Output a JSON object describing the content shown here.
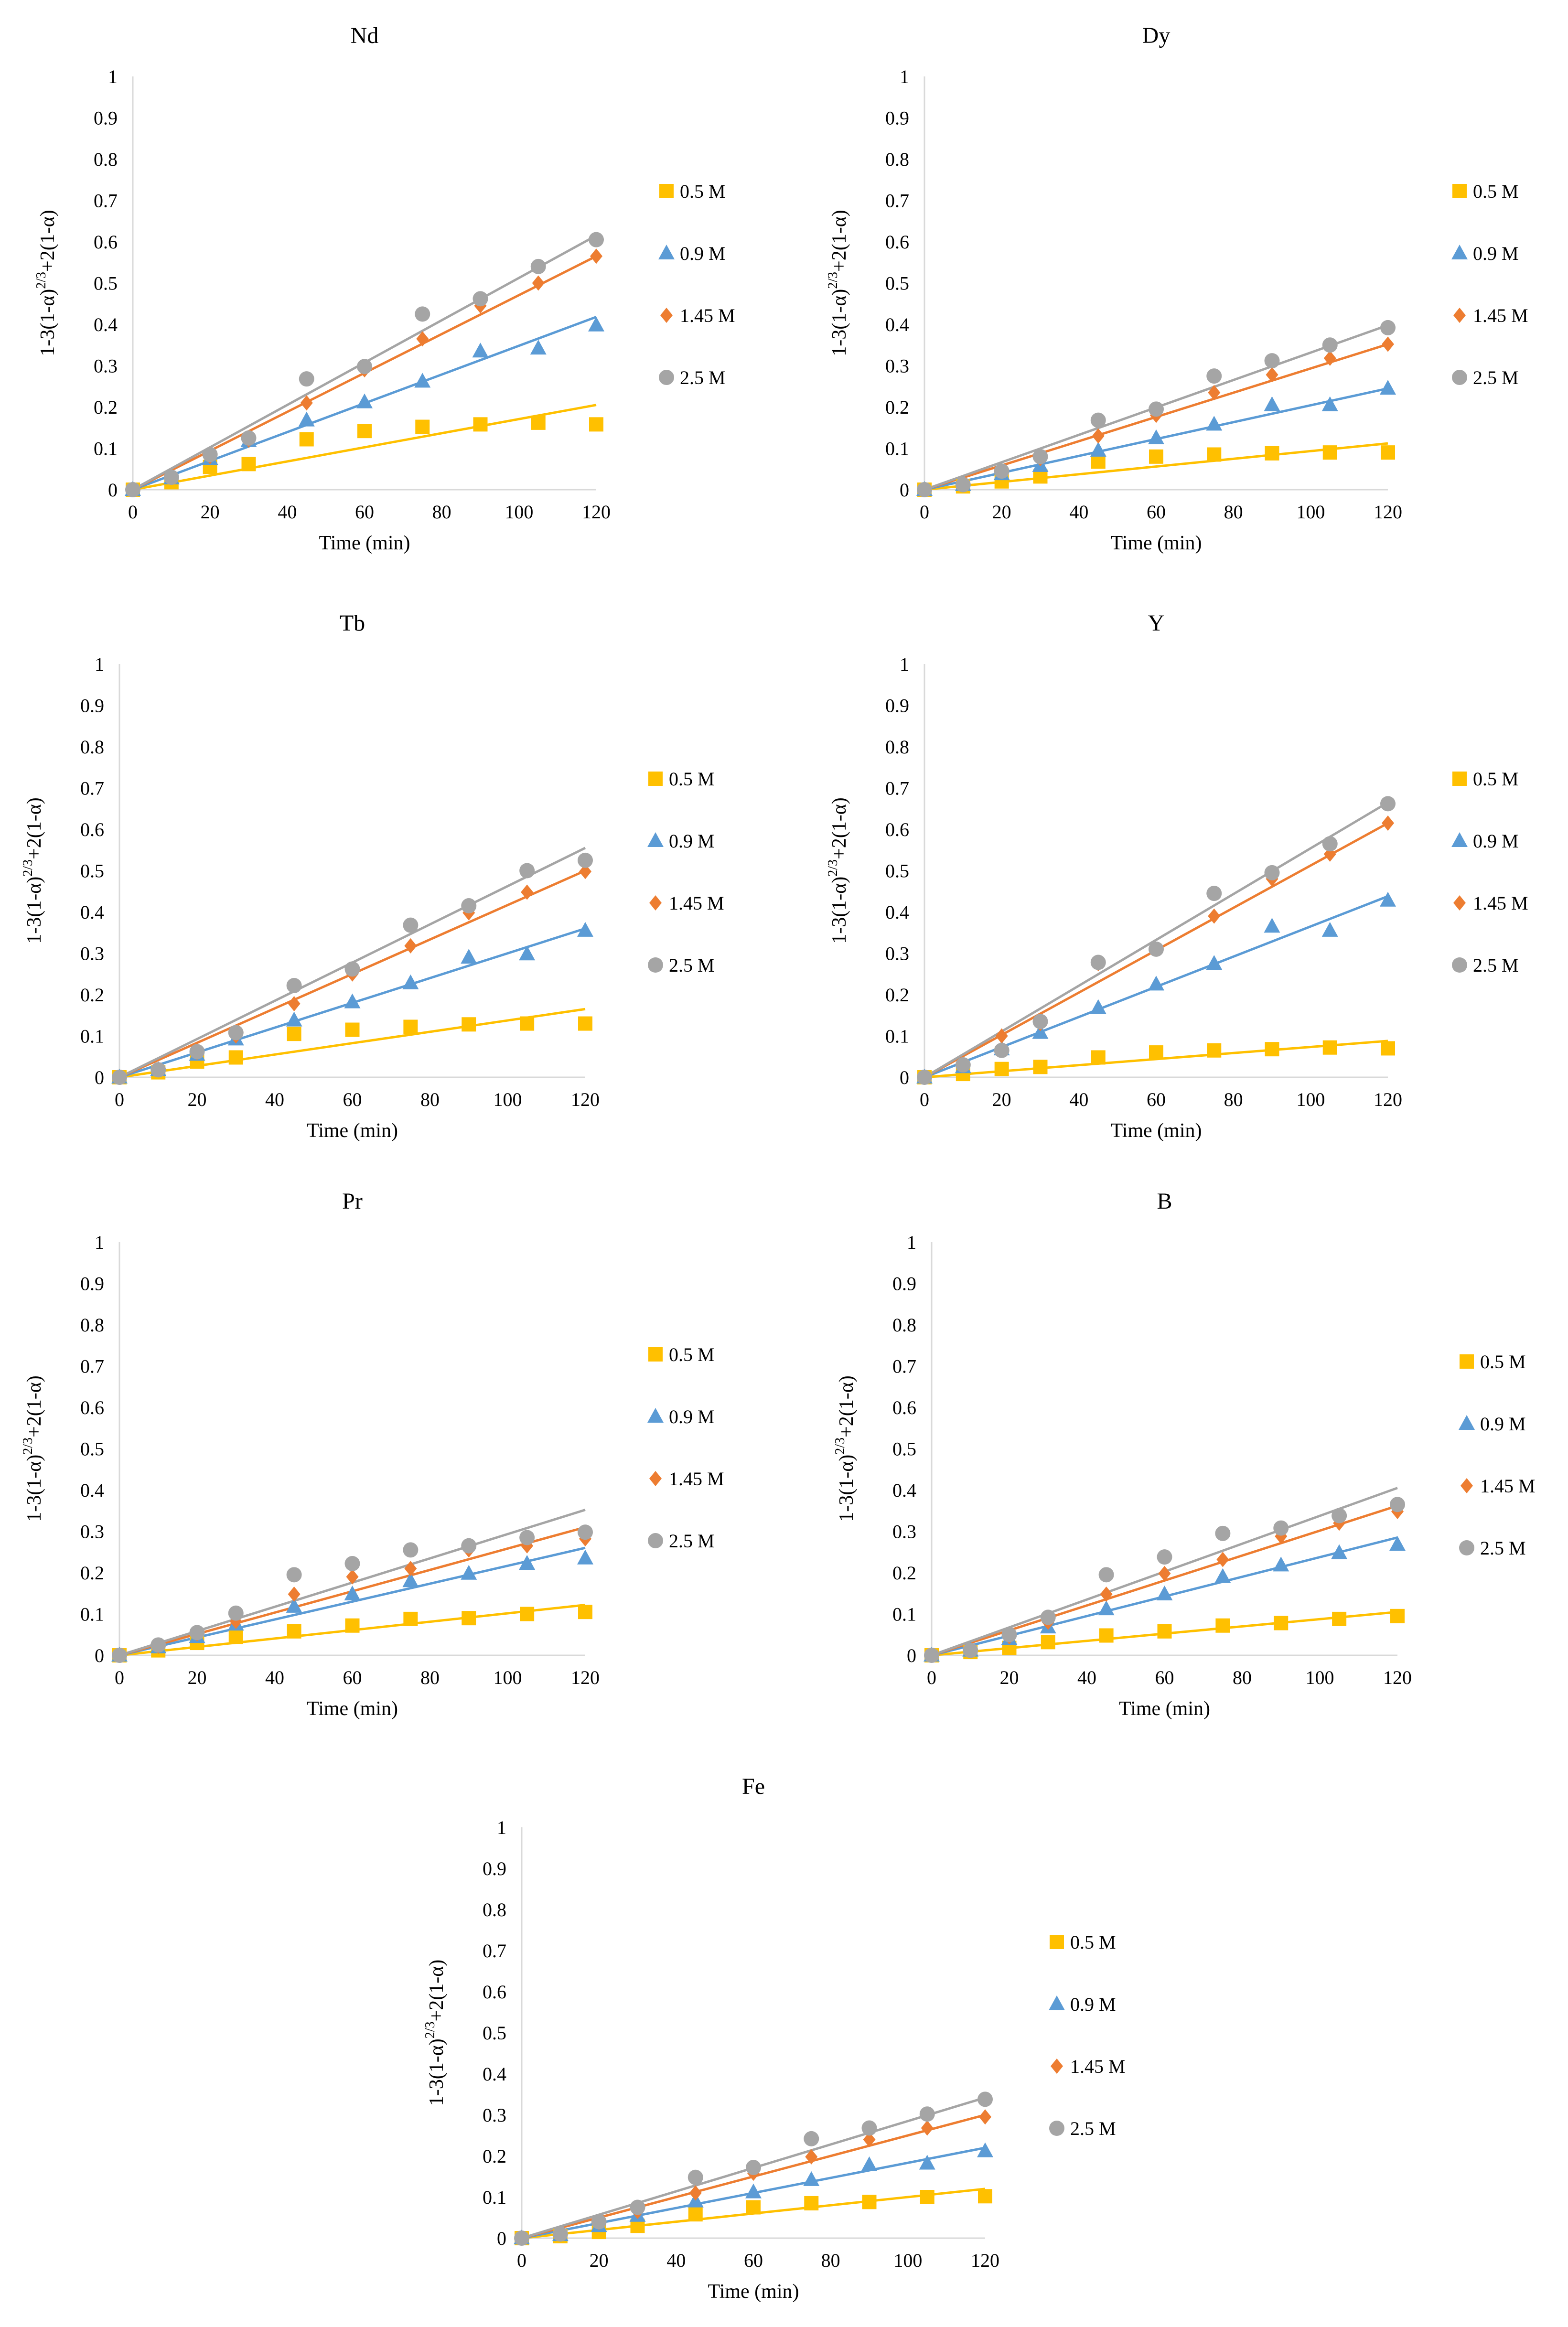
{
  "chart_data": [
    {
      "type": "scatter",
      "title": "Nd",
      "xlabel": "Time (min)",
      "ylabel": "1-3(1-α)^2/3+2(1-α)",
      "xlim": [
        0,
        120
      ],
      "ylim": [
        0,
        1
      ],
      "xticks": [
        "0",
        "20",
        "40",
        "60",
        "80",
        "100",
        "120"
      ],
      "yticks": [
        "0",
        "0.1",
        "0.2",
        "0.3",
        "0.4",
        "0.5",
        "0.6",
        "0.7",
        "0.8",
        "0.9",
        "1"
      ],
      "legend_position": "right",
      "series": [
        {
          "name": "0.5 M",
          "marker": "square",
          "color": "#FFC000",
          "x": [
            0,
            10,
            20,
            30,
            45,
            60,
            75,
            90,
            105,
            120
          ],
          "y": [
            0,
            0.018,
            0.055,
            0.062,
            0.122,
            0.142,
            0.152,
            0.158,
            0.162,
            0.158
          ],
          "trend_end": 0.205
        },
        {
          "name": "0.9 M",
          "marker": "triangle",
          "color": "#5B9BD5",
          "x": [
            0,
            10,
            20,
            30,
            45,
            60,
            75,
            90,
            105,
            120
          ],
          "y": [
            0,
            0.028,
            0.075,
            0.118,
            0.168,
            0.212,
            0.262,
            0.335,
            0.342,
            0.398
          ],
          "trend_end": 0.418
        },
        {
          "name": "1.45 M",
          "marker": "diamond",
          "color": "#ED7D31",
          "x": [
            0,
            10,
            20,
            30,
            45,
            60,
            75,
            90,
            105,
            120
          ],
          "y": [
            0,
            0.03,
            0.08,
            0.12,
            0.21,
            0.29,
            0.365,
            0.445,
            0.5,
            0.565
          ],
          "trend_end": 0.565
        },
        {
          "name": "2.5 M",
          "marker": "circle",
          "color": "#A5A5A5",
          "x": [
            0,
            10,
            20,
            30,
            45,
            60,
            75,
            90,
            105,
            120
          ],
          "y": [
            0,
            0.03,
            0.085,
            0.125,
            0.268,
            0.298,
            0.425,
            0.462,
            0.54,
            0.605
          ],
          "trend_end": 0.615
        }
      ]
    },
    {
      "type": "scatter",
      "title": "Dy",
      "xlabel": "Time (min)",
      "ylabel": "1-3(1-α)^2/3+2(1-α)",
      "xlim": [
        0,
        120
      ],
      "ylim": [
        0,
        1
      ],
      "xticks": [
        "0",
        "20",
        "40",
        "60",
        "80",
        "100",
        "120"
      ],
      "yticks": [
        "0",
        "0.1",
        "0.2",
        "0.3",
        "0.4",
        "0.5",
        "0.6",
        "0.7",
        "0.8",
        "0.9",
        "1"
      ],
      "legend_position": "right",
      "series": [
        {
          "name": "0.5 M",
          "marker": "square",
          "color": "#FFC000",
          "x": [
            0,
            10,
            20,
            30,
            45,
            60,
            75,
            90,
            105,
            120
          ],
          "y": [
            0,
            0.008,
            0.02,
            0.032,
            0.068,
            0.08,
            0.085,
            0.088,
            0.09,
            0.09
          ],
          "trend_end": 0.112
        },
        {
          "name": "0.9 M",
          "marker": "triangle",
          "color": "#5B9BD5",
          "x": [
            0,
            10,
            20,
            30,
            45,
            60,
            75,
            90,
            105,
            120
          ],
          "y": [
            0,
            0.012,
            0.038,
            0.058,
            0.095,
            0.125,
            0.158,
            0.205,
            0.205,
            0.245
          ],
          "trend_end": 0.245
        },
        {
          "name": "1.45 M",
          "marker": "diamond",
          "color": "#ED7D31",
          "x": [
            0,
            10,
            20,
            30,
            45,
            60,
            75,
            90,
            105,
            120
          ],
          "y": [
            0,
            0.012,
            0.045,
            0.075,
            0.13,
            0.18,
            0.235,
            0.278,
            0.318,
            0.352
          ],
          "trend_end": 0.352
        },
        {
          "name": "2.5 M",
          "marker": "circle",
          "color": "#A5A5A5",
          "x": [
            0,
            10,
            20,
            30,
            45,
            60,
            75,
            90,
            105,
            120
          ],
          "y": [
            0,
            0.012,
            0.045,
            0.08,
            0.168,
            0.195,
            0.275,
            0.312,
            0.35,
            0.392
          ],
          "trend_end": 0.398
        }
      ]
    },
    {
      "type": "scatter",
      "title": "Tb",
      "xlabel": "Time (min)",
      "ylabel": "1-3(1-α)^2/3+2(1-α)",
      "xlim": [
        0,
        120
      ],
      "ylim": [
        0,
        1
      ],
      "xticks": [
        "0",
        "20",
        "40",
        "60",
        "80",
        "100",
        "120"
      ],
      "yticks": [
        "0",
        "0.1",
        "0.2",
        "0.3",
        "0.4",
        "0.5",
        "0.6",
        "0.7",
        "0.8",
        "0.9",
        "1"
      ],
      "legend_position": "right",
      "series": [
        {
          "name": "0.5 M",
          "marker": "square",
          "color": "#FFC000",
          "x": [
            0,
            10,
            20,
            30,
            45,
            60,
            75,
            90,
            105,
            120
          ],
          "y": [
            0,
            0.012,
            0.038,
            0.048,
            0.105,
            0.115,
            0.122,
            0.128,
            0.13,
            0.13
          ],
          "trend_end": 0.165
        },
        {
          "name": "0.9 M",
          "marker": "triangle",
          "color": "#5B9BD5",
          "x": [
            0,
            10,
            20,
            30,
            45,
            60,
            75,
            90,
            105,
            120
          ],
          "y": [
            0,
            0.018,
            0.055,
            0.092,
            0.138,
            0.182,
            0.228,
            0.29,
            0.298,
            0.355
          ],
          "trend_end": 0.36
        },
        {
          "name": "1.45 M",
          "marker": "diamond",
          "color": "#ED7D31",
          "x": [
            0,
            10,
            20,
            30,
            45,
            60,
            75,
            90,
            105,
            120
          ],
          "y": [
            0,
            0.018,
            0.06,
            0.1,
            0.178,
            0.25,
            0.318,
            0.398,
            0.448,
            0.498
          ],
          "trend_end": 0.5
        },
        {
          "name": "2.5 M",
          "marker": "circle",
          "color": "#A5A5A5",
          "x": [
            0,
            10,
            20,
            30,
            45,
            60,
            75,
            90,
            105,
            120
          ],
          "y": [
            0,
            0.018,
            0.062,
            0.108,
            0.222,
            0.262,
            0.368,
            0.415,
            0.5,
            0.525
          ],
          "trend_end": 0.555
        }
      ]
    },
    {
      "type": "scatter",
      "title": "Y",
      "xlabel": "Time (min)",
      "ylabel": "1-3(1-α)^2/3+2(1-α)",
      "xlim": [
        0,
        120
      ],
      "ylim": [
        0,
        1
      ],
      "xticks": [
        "0",
        "20",
        "40",
        "60",
        "80",
        "100",
        "120"
      ],
      "yticks": [
        "0",
        "0.1",
        "0.2",
        "0.3",
        "0.4",
        "0.5",
        "0.6",
        "0.7",
        "0.8",
        "0.9",
        "1"
      ],
      "legend_position": "right",
      "series": [
        {
          "name": "0.5 M",
          "marker": "square",
          "color": "#FFC000",
          "x": [
            0,
            10,
            20,
            30,
            45,
            60,
            75,
            90,
            105,
            120
          ],
          "y": [
            0,
            0.008,
            0.02,
            0.025,
            0.048,
            0.06,
            0.065,
            0.068,
            0.072,
            0.07
          ],
          "trend_end": 0.088
        },
        {
          "name": "0.9 M",
          "marker": "triangle",
          "color": "#5B9BD5",
          "x": [
            0,
            10,
            20,
            30,
            45,
            60,
            75,
            90,
            105,
            120
          ],
          "y": [
            0,
            0.025,
            0.068,
            0.108,
            0.168,
            0.225,
            0.275,
            0.365,
            0.355,
            0.428
          ],
          "trend_end": 0.438
        },
        {
          "name": "1.45 M",
          "marker": "diamond",
          "color": "#ED7D31",
          "x": [
            0,
            10,
            20,
            30,
            45,
            60,
            75,
            90,
            105,
            120
          ],
          "y": [
            0,
            0.03,
            0.1,
            0.13,
            0.275,
            0.31,
            0.39,
            0.48,
            0.54,
            0.615
          ],
          "trend_end": 0.615
        },
        {
          "name": "2.5 M",
          "marker": "circle",
          "color": "#A5A5A5",
          "x": [
            0,
            10,
            20,
            30,
            45,
            60,
            75,
            90,
            105,
            120
          ],
          "y": [
            0,
            0.03,
            0.065,
            0.135,
            0.278,
            0.31,
            0.445,
            0.495,
            0.565,
            0.662
          ],
          "trend_end": 0.665
        }
      ]
    },
    {
      "type": "scatter",
      "title": "Pr",
      "xlabel": "Time (min)",
      "ylabel": "1-3(1-α)^2/3+2(1-α)",
      "xlim": [
        0,
        120
      ],
      "ylim": [
        0,
        1
      ],
      "xticks": [
        "0",
        "20",
        "40",
        "60",
        "80",
        "100",
        "120"
      ],
      "yticks": [
        "0",
        "0.1",
        "0.2",
        "0.3",
        "0.4",
        "0.5",
        "0.6",
        "0.7",
        "0.8",
        "0.9",
        "1"
      ],
      "legend_position": "right",
      "series": [
        {
          "name": "0.5 M",
          "marker": "square",
          "color": "#FFC000",
          "x": [
            0,
            10,
            20,
            30,
            45,
            60,
            75,
            90,
            105,
            120
          ],
          "y": [
            0,
            0.012,
            0.03,
            0.045,
            0.058,
            0.072,
            0.088,
            0.09,
            0.1,
            0.105
          ],
          "trend_end": 0.122
        },
        {
          "name": "0.9 M",
          "marker": "triangle",
          "color": "#5B9BD5",
          "x": [
            0,
            10,
            20,
            30,
            45,
            60,
            75,
            90,
            105,
            120
          ],
          "y": [
            0,
            0.02,
            0.045,
            0.075,
            0.118,
            0.148,
            0.18,
            0.198,
            0.222,
            0.235
          ],
          "trend_end": 0.26
        },
        {
          "name": "1.45 M",
          "marker": "diamond",
          "color": "#ED7D31",
          "x": [
            0,
            10,
            20,
            30,
            45,
            60,
            75,
            90,
            105,
            120
          ],
          "y": [
            0,
            0.022,
            0.052,
            0.082,
            0.148,
            0.19,
            0.21,
            0.255,
            0.265,
            0.282
          ],
          "trend_end": 0.31
        },
        {
          "name": "2.5 M",
          "marker": "circle",
          "color": "#A5A5A5",
          "x": [
            0,
            10,
            20,
            30,
            45,
            60,
            75,
            90,
            105,
            120
          ],
          "y": [
            0,
            0.025,
            0.055,
            0.102,
            0.195,
            0.222,
            0.255,
            0.265,
            0.285,
            0.298
          ],
          "trend_end": 0.352
        }
      ]
    },
    {
      "type": "scatter",
      "title": "B",
      "xlabel": "Time (min)",
      "ylabel": "1-3(1-α)^2/3+2(1-α)",
      "xlim": [
        0,
        120
      ],
      "ylim": [
        0,
        1
      ],
      "xticks": [
        "0",
        "20",
        "40",
        "60",
        "80",
        "100",
        "120"
      ],
      "yticks": [
        "0",
        "0.1",
        "0.2",
        "0.3",
        "0.4",
        "0.5",
        "0.6",
        "0.7",
        "0.8",
        "0.9",
        "1"
      ],
      "legend_position": "right",
      "series": [
        {
          "name": "0.5 M",
          "marker": "square",
          "color": "#FFC000",
          "x": [
            0,
            10,
            20,
            30,
            45,
            60,
            75,
            90,
            105,
            120
          ],
          "y": [
            0,
            0.008,
            0.018,
            0.032,
            0.048,
            0.058,
            0.072,
            0.078,
            0.088,
            0.095
          ],
          "trend_end": 0.105
        },
        {
          "name": "0.9 M",
          "marker": "triangle",
          "color": "#5B9BD5",
          "x": [
            0,
            10,
            20,
            30,
            45,
            60,
            75,
            90,
            105,
            120
          ],
          "y": [
            0,
            0.012,
            0.04,
            0.068,
            0.112,
            0.148,
            0.19,
            0.218,
            0.248,
            0.268
          ],
          "trend_end": 0.285
        },
        {
          "name": "1.45 M",
          "marker": "diamond",
          "color": "#ED7D31",
          "x": [
            0,
            10,
            20,
            30,
            45,
            60,
            75,
            90,
            105,
            120
          ],
          "y": [
            0,
            0.012,
            0.045,
            0.08,
            0.148,
            0.198,
            0.232,
            0.288,
            0.32,
            0.348
          ],
          "trend_end": 0.362
        },
        {
          "name": "2.5 M",
          "marker": "circle",
          "color": "#A5A5A5",
          "x": [
            0,
            10,
            20,
            30,
            45,
            60,
            75,
            90,
            105,
            120
          ],
          "y": [
            0,
            0.012,
            0.05,
            0.092,
            0.195,
            0.238,
            0.295,
            0.308,
            0.338,
            0.365
          ],
          "trend_end": 0.405
        }
      ]
    },
    {
      "type": "scatter",
      "title": "Fe",
      "xlabel": "Time (min)",
      "ylabel": "1-3(1-α)^2/3+2(1-α)",
      "xlim": [
        0,
        120
      ],
      "ylim": [
        0,
        1
      ],
      "xticks": [
        "0",
        "20",
        "40",
        "60",
        "80",
        "100",
        "120"
      ],
      "yticks": [
        "0",
        "0.1",
        "0.2",
        "0.3",
        "0.4",
        "0.5",
        "0.6",
        "0.7",
        "0.8",
        "0.9",
        "1"
      ],
      "legend_position": "right",
      "series": [
        {
          "name": "0.5 M",
          "marker": "square",
          "color": "#FFC000",
          "x": [
            0,
            10,
            20,
            30,
            45,
            60,
            75,
            90,
            105,
            120
          ],
          "y": [
            0,
            0.005,
            0.015,
            0.03,
            0.058,
            0.075,
            0.085,
            0.088,
            0.1,
            0.102
          ],
          "trend_end": 0.12
        },
        {
          "name": "0.9 M",
          "marker": "triangle",
          "color": "#5B9BD5",
          "x": [
            0,
            10,
            20,
            30,
            45,
            60,
            75,
            90,
            105,
            120
          ],
          "y": [
            0,
            0.008,
            0.03,
            0.055,
            0.09,
            0.112,
            0.142,
            0.178,
            0.182,
            0.212
          ],
          "trend_end": 0.22
        },
        {
          "name": "1.45 M",
          "marker": "diamond",
          "color": "#ED7D31",
          "x": [
            0,
            10,
            20,
            30,
            45,
            60,
            75,
            90,
            105,
            120
          ],
          "y": [
            0,
            0.01,
            0.038,
            0.065,
            0.11,
            0.158,
            0.198,
            0.24,
            0.268,
            0.295
          ],
          "trend_end": 0.3
        },
        {
          "name": "2.5 M",
          "marker": "circle",
          "color": "#A5A5A5",
          "x": [
            0,
            10,
            20,
            30,
            45,
            60,
            75,
            90,
            105,
            120
          ],
          "y": [
            0,
            0.01,
            0.04,
            0.075,
            0.148,
            0.172,
            0.242,
            0.268,
            0.302,
            0.338
          ],
          "trend_end": 0.342
        }
      ]
    }
  ]
}
